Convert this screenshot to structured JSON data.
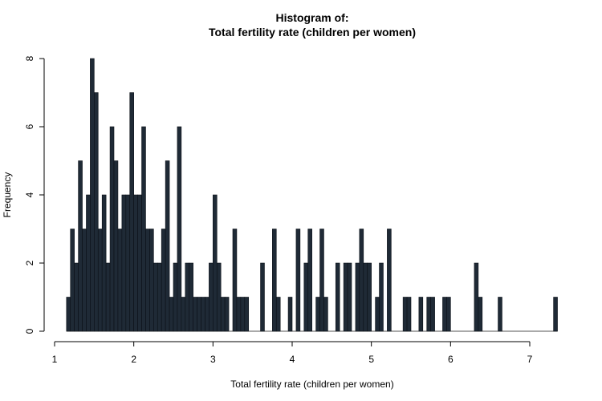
{
  "chart_data": {
    "type": "bar",
    "title": "Histogram of:",
    "subtitle": "Total fertility rate (children per women)",
    "xlabel": "Total fertility rate (children per women)",
    "ylabel": "Frequency",
    "xlim": [
      1,
      7.3
    ],
    "ylim": [
      0,
      8
    ],
    "xticks": [
      "1",
      "2",
      "3",
      "4",
      "5",
      "6",
      "7"
    ],
    "yticks": [
      "0",
      "2",
      "4",
      "6",
      "8"
    ],
    "bin_width": 0.05,
    "bin_start": 1.15,
    "bins": [
      {
        "x": 1.15,
        "count": 1
      },
      {
        "x": 1.2,
        "count": 3
      },
      {
        "x": 1.25,
        "count": 2
      },
      {
        "x": 1.3,
        "count": 5
      },
      {
        "x": 1.35,
        "count": 3
      },
      {
        "x": 1.4,
        "count": 4
      },
      {
        "x": 1.45,
        "count": 8
      },
      {
        "x": 1.5,
        "count": 7
      },
      {
        "x": 1.55,
        "count": 3
      },
      {
        "x": 1.6,
        "count": 4
      },
      {
        "x": 1.65,
        "count": 2
      },
      {
        "x": 1.7,
        "count": 6
      },
      {
        "x": 1.75,
        "count": 5
      },
      {
        "x": 1.8,
        "count": 3
      },
      {
        "x": 1.85,
        "count": 4
      },
      {
        "x": 1.9,
        "count": 4
      },
      {
        "x": 1.95,
        "count": 7
      },
      {
        "x": 2.0,
        "count": 4
      },
      {
        "x": 2.05,
        "count": 4
      },
      {
        "x": 2.1,
        "count": 6
      },
      {
        "x": 2.15,
        "count": 3
      },
      {
        "x": 2.2,
        "count": 3
      },
      {
        "x": 2.25,
        "count": 2
      },
      {
        "x": 2.3,
        "count": 2
      },
      {
        "x": 2.35,
        "count": 3
      },
      {
        "x": 2.4,
        "count": 5
      },
      {
        "x": 2.45,
        "count": 1
      },
      {
        "x": 2.5,
        "count": 2
      },
      {
        "x": 2.55,
        "count": 6
      },
      {
        "x": 2.6,
        "count": 1
      },
      {
        "x": 2.65,
        "count": 2
      },
      {
        "x": 2.7,
        "count": 2
      },
      {
        "x": 2.75,
        "count": 1
      },
      {
        "x": 2.8,
        "count": 1
      },
      {
        "x": 2.85,
        "count": 1
      },
      {
        "x": 2.9,
        "count": 1
      },
      {
        "x": 2.95,
        "count": 2
      },
      {
        "x": 3.0,
        "count": 4
      },
      {
        "x": 3.05,
        "count": 2
      },
      {
        "x": 3.1,
        "count": 1
      },
      {
        "x": 3.15,
        "count": 1
      },
      {
        "x": 3.25,
        "count": 3
      },
      {
        "x": 3.3,
        "count": 1
      },
      {
        "x": 3.35,
        "count": 1
      },
      {
        "x": 3.4,
        "count": 1
      },
      {
        "x": 3.6,
        "count": 2
      },
      {
        "x": 3.75,
        "count": 3
      },
      {
        "x": 3.8,
        "count": 1
      },
      {
        "x": 3.95,
        "count": 1
      },
      {
        "x": 4.05,
        "count": 3
      },
      {
        "x": 4.15,
        "count": 2
      },
      {
        "x": 4.2,
        "count": 3
      },
      {
        "x": 4.3,
        "count": 1
      },
      {
        "x": 4.35,
        "count": 3
      },
      {
        "x": 4.4,
        "count": 1
      },
      {
        "x": 4.55,
        "count": 2
      },
      {
        "x": 4.65,
        "count": 2
      },
      {
        "x": 4.7,
        "count": 2
      },
      {
        "x": 4.8,
        "count": 2
      },
      {
        "x": 4.85,
        "count": 3
      },
      {
        "x": 4.9,
        "count": 2
      },
      {
        "x": 4.95,
        "count": 2
      },
      {
        "x": 5.05,
        "count": 1
      },
      {
        "x": 5.1,
        "count": 2
      },
      {
        "x": 5.2,
        "count": 3
      },
      {
        "x": 5.4,
        "count": 1
      },
      {
        "x": 5.45,
        "count": 1
      },
      {
        "x": 5.6,
        "count": 1
      },
      {
        "x": 5.7,
        "count": 1
      },
      {
        "x": 5.75,
        "count": 1
      },
      {
        "x": 5.9,
        "count": 1
      },
      {
        "x": 5.95,
        "count": 1
      },
      {
        "x": 6.3,
        "count": 2
      },
      {
        "x": 6.35,
        "count": 1
      },
      {
        "x": 6.6,
        "count": 1
      },
      {
        "x": 7.3,
        "count": 1
      }
    ],
    "bar_color": "#1f2a36",
    "grid": false,
    "legend": "none"
  }
}
